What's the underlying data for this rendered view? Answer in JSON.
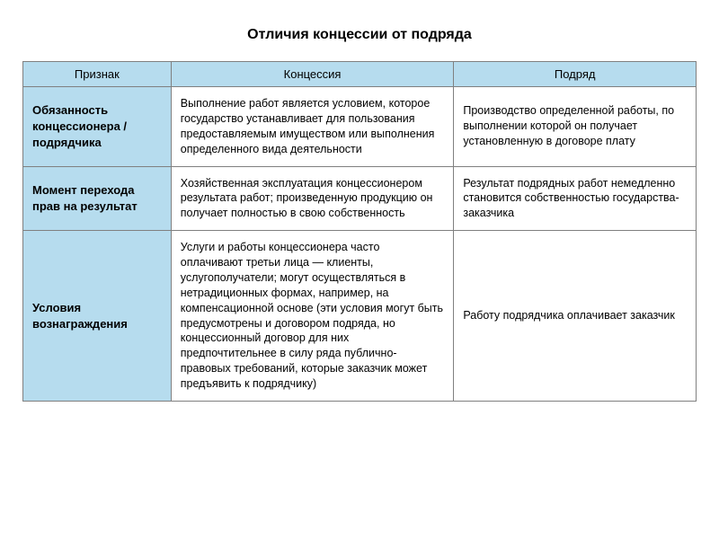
{
  "title": "Отличия концессии от подряда",
  "table": {
    "type": "table",
    "background_color": "#ffffff",
    "border_color": "#808080",
    "header_bg": "#b6dcee",
    "rowhead_bg": "#b6dcee",
    "header_fontsize": 13,
    "cell_fontsize": 12.5,
    "column_widths_pct": [
      22,
      42,
      36
    ],
    "columns": [
      "Признак",
      "Концессия",
      "Подряд"
    ],
    "rows": [
      {
        "head": "Обязанность концессионера / подрядчика",
        "c1": "Выполнение работ является условием, которое государство устанавливает для пользования предоставляемым имуществом или выполнения определенного вида деятельности",
        "c2": "Производство определенной работы, по выполнении которой он получает установленную в договоре плату"
      },
      {
        "head": "Момент перехода прав на результат",
        "c1": "Хозяйственная эксплуатация концессионером результата работ; произведенную продукцию он получает полностью в свою собственность",
        "c2": "Результат подрядных работ немедленно становится собственностью государства-заказчика"
      },
      {
        "head": "Условия вознаграждения",
        "c1": "Услуги и работы концессионера часто оплачивают третьи лица — клиенты, услугополучатели; могут осуществляться в нетрадиционных формах, например, на компенсационной основе (эти условия могут быть предусмотрены и договором подряда, но концессионный договор для них предпочтительнее в силу ряда публично-правовых требований, которые заказчик может предъявить к подрядчику)",
        "c2": "Работу подрядчика оплачивает заказчик"
      }
    ]
  }
}
